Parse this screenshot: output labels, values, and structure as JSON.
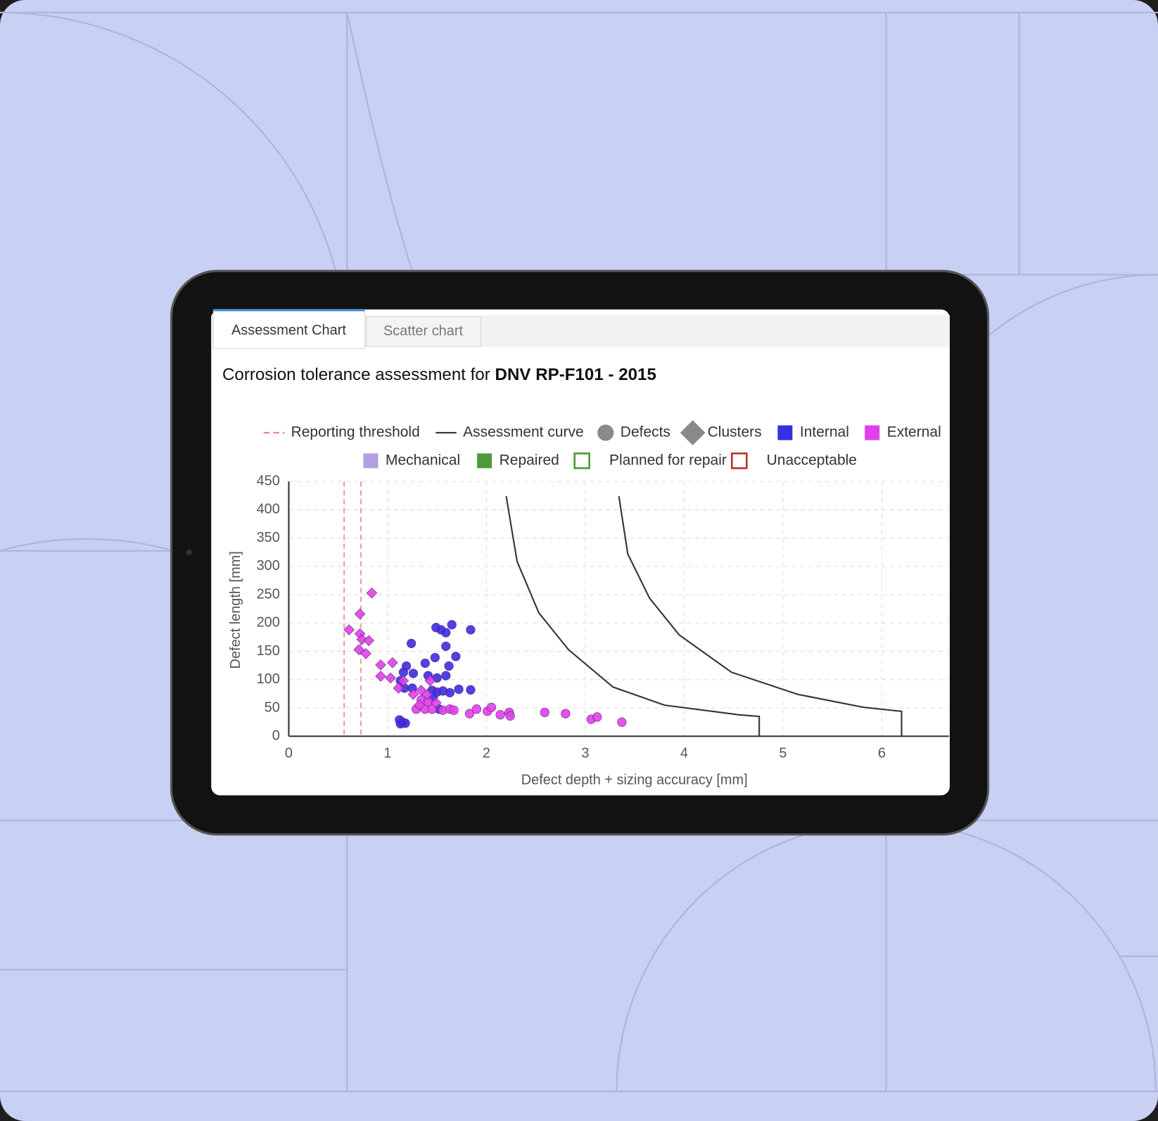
{
  "tabs": [
    {
      "label": "Assessment Chart",
      "active": true
    },
    {
      "label": "Scatter chart",
      "active": false
    }
  ],
  "chart_data": {
    "type": "scatter",
    "title": "Corrosion tolerance assessment for",
    "title_emphasis": "DNV RP-F101 - 2015",
    "x_label": "Defect depth + sizing accuracy [mm]",
    "y_label": "Defect length [mm]",
    "xlim": [
      0,
      6.68
    ],
    "ylim": [
      0,
      450
    ],
    "xticks": [
      0,
      1,
      2,
      3,
      4,
      5,
      6
    ],
    "yticks": [
      0,
      50,
      100,
      150,
      200,
      250,
      300,
      350,
      400,
      450
    ],
    "grid": true,
    "legend": [
      {
        "name": "Reporting threshold",
        "symbol": "dashed-line",
        "color": "#ee8080"
      },
      {
        "name": "Assessment curve",
        "symbol": "line",
        "color": "#333333"
      },
      {
        "name": "Defects",
        "symbol": "circle",
        "color": "#8a8a8a"
      },
      {
        "name": "Clusters",
        "symbol": "diamond",
        "color": "#8a8a8a"
      },
      {
        "name": "Internal",
        "symbol": "square",
        "color": "#3a2ee0"
      },
      {
        "name": "External",
        "symbol": "square",
        "color": "#e040e8"
      },
      {
        "name": "Mechanical",
        "symbol": "square",
        "color": "#b49ee2"
      },
      {
        "name": "Repaired",
        "symbol": "square",
        "color": "#4c9a3c"
      },
      {
        "name": "Planned for repair",
        "symbol": "square-outline",
        "color": "#4c9a3c"
      },
      {
        "name": "Unacceptable",
        "symbol": "square-outline",
        "color": "#c03030"
      }
    ],
    "thresholds": {
      "color": "#ee8080",
      "x": [
        0.56,
        0.73
      ]
    },
    "curve": {
      "color": "#333333",
      "x": [
        2.2,
        2.31,
        2.53,
        2.83,
        3.28,
        3.8,
        4.55,
        4.76,
        4.76,
        null,
        3.34,
        3.43,
        3.65,
        3.95,
        4.48,
        5.15,
        5.82,
        6.2,
        6.2
      ],
      "y": [
        424,
        309,
        218,
        153,
        87,
        55,
        38,
        35,
        0,
        null,
        424,
        322,
        244,
        179,
        113,
        74,
        51,
        44,
        0
      ]
    },
    "series": [
      {
        "marker": "circle",
        "color": "#3a2ee0",
        "x": [
          1.49,
          1.54,
          1.65,
          1.84,
          1.59,
          1.24,
          1.59,
          1.48,
          1.69,
          1.19,
          1.38,
          1.62,
          1.16,
          1.26,
          1.41,
          1.5,
          1.59,
          1.13,
          1.17,
          1.25,
          1.45,
          1.5,
          1.56,
          1.63,
          1.72,
          1.84,
          1.46,
          1.52,
          1.12,
          1.15,
          1.18,
          1.13
        ],
        "y": [
          192,
          188,
          197,
          188,
          183,
          164,
          159,
          139,
          141,
          124,
          129,
          124,
          113,
          111,
          107,
          103,
          107,
          98,
          85,
          85,
          81,
          78,
          80,
          77,
          83,
          82,
          68,
          48,
          29,
          25,
          23,
          22
        ]
      },
      {
        "marker": "circle",
        "color": "#e040e8",
        "x": [
          1.29,
          1.38,
          1.45,
          1.56,
          1.63,
          1.67,
          1.83,
          1.9,
          2.01,
          2.05,
          2.14,
          2.23,
          2.24,
          2.59,
          2.8,
          3.06,
          3.12,
          3.37,
          1.34,
          1.41
        ],
        "y": [
          48,
          48,
          48,
          46,
          48,
          46,
          40,
          48,
          44,
          51,
          38,
          42,
          36,
          42,
          40,
          30,
          34,
          25,
          64,
          61
        ]
      },
      {
        "marker": "diamond",
        "color": "#e040e8",
        "x": [
          0.84,
          0.72,
          0.61,
          0.72,
          0.74,
          0.81,
          0.71,
          0.78,
          0.93,
          1.05,
          0.93,
          1.03,
          1.11,
          1.16,
          1.26,
          1.34,
          1.43,
          1.4,
          1.49,
          1.32
        ],
        "y": [
          253,
          216,
          188,
          181,
          171,
          169,
          153,
          146,
          126,
          130,
          106,
          103,
          85,
          98,
          74,
          81,
          98,
          74,
          59,
          55
        ]
      }
    ]
  }
}
